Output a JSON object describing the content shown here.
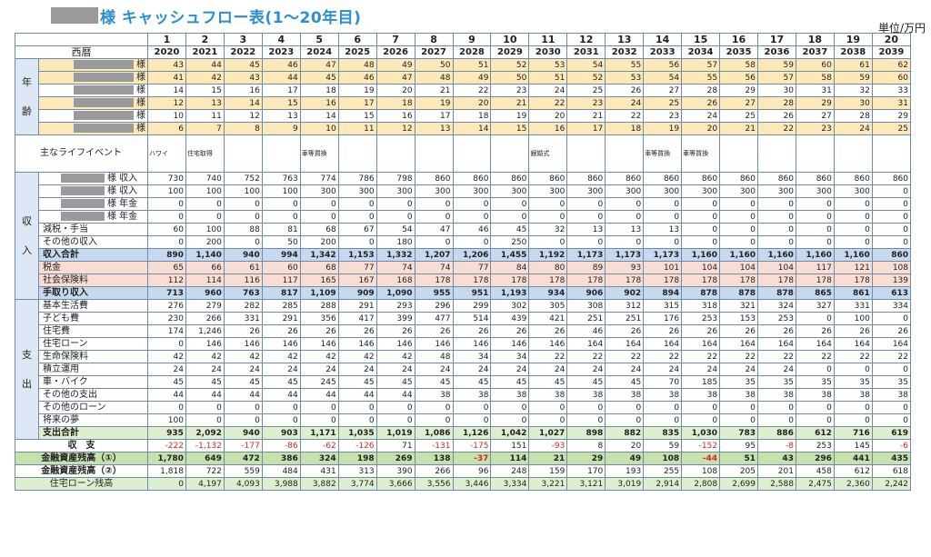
{
  "title": "様 キャッシュフロー表(1～20年目)",
  "unit": "単位/万円",
  "year_numbers": [
    "1",
    "2",
    "3",
    "4",
    "5",
    "6",
    "7",
    "8",
    "9",
    "10",
    "11",
    "12",
    "13",
    "14",
    "15",
    "16",
    "17",
    "18",
    "19",
    "20"
  ],
  "calendar_label": "西暦",
  "calendar_years": [
    "2020",
    "2021",
    "2022",
    "2023",
    "2024",
    "2025",
    "2026",
    "2027",
    "2028",
    "2029",
    "2030",
    "2031",
    "2032",
    "2033",
    "2034",
    "2035",
    "2036",
    "2037",
    "2038",
    "2039"
  ],
  "age_group_label": [
    "年",
    "齢"
  ],
  "age_suffix": "様",
  "ages": [
    [
      43,
      44,
      45,
      46,
      47,
      48,
      49,
      50,
      51,
      52,
      53,
      54,
      55,
      56,
      57,
      58,
      59,
      60,
      61,
      62
    ],
    [
      41,
      42,
      43,
      44,
      45,
      46,
      47,
      48,
      49,
      50,
      51,
      52,
      53,
      54,
      55,
      56,
      57,
      58,
      59,
      60
    ],
    [
      14,
      15,
      16,
      17,
      18,
      19,
      20,
      21,
      22,
      23,
      24,
      25,
      26,
      27,
      28,
      29,
      30,
      31,
      32,
      33
    ],
    [
      12,
      13,
      14,
      15,
      16,
      17,
      18,
      19,
      20,
      21,
      22,
      23,
      24,
      25,
      26,
      27,
      28,
      29,
      30,
      31
    ],
    [
      10,
      11,
      12,
      13,
      14,
      15,
      16,
      17,
      18,
      19,
      20,
      21,
      22,
      23,
      24,
      25,
      26,
      27,
      28,
      29
    ],
    [
      6,
      7,
      8,
      9,
      10,
      11,
      12,
      13,
      14,
      15,
      16,
      17,
      18,
      19,
      20,
      21,
      22,
      23,
      24,
      25
    ]
  ],
  "age_highlight": [
    true,
    true,
    false,
    true,
    false,
    true
  ],
  "life_event_label": "主なライフイベント",
  "life_events": [
    "ハワイ",
    "住宅取得",
    "",
    "",
    "車等買換",
    "",
    "",
    "",
    "",
    "",
    "銀婚式",
    "",
    "",
    "車等買換",
    "車等買換",
    "",
    "",
    "",
    "",
    ""
  ],
  "income_group_label": [
    "収",
    "入"
  ],
  "income_rows": [
    {
      "label": "様 収入",
      "masked": true,
      "values": [
        "730",
        "740",
        "752",
        "763",
        "774",
        "786",
        "798",
        "860",
        "860",
        "860",
        "860",
        "860",
        "860",
        "860",
        "860",
        "860",
        "860",
        "860",
        "860",
        "860"
      ]
    },
    {
      "label": "様 収入",
      "masked": true,
      "values": [
        "100",
        "100",
        "100",
        "100",
        "300",
        "300",
        "300",
        "300",
        "300",
        "300",
        "300",
        "300",
        "300",
        "300",
        "300",
        "300",
        "300",
        "300",
        "300",
        "0"
      ]
    },
    {
      "label": "様 年金",
      "masked": true,
      "values": [
        "0",
        "0",
        "0",
        "0",
        "0",
        "0",
        "0",
        "0",
        "0",
        "0",
        "0",
        "0",
        "0",
        "0",
        "0",
        "0",
        "0",
        "0",
        "0",
        "0"
      ]
    },
    {
      "label": "様 年金",
      "masked": true,
      "values": [
        "0",
        "0",
        "0",
        "0",
        "0",
        "0",
        "0",
        "0",
        "0",
        "0",
        "0",
        "0",
        "0",
        "0",
        "0",
        "0",
        "0",
        "0",
        "0",
        "0"
      ]
    },
    {
      "label": "減税・手当",
      "masked": false,
      "values": [
        "60",
        "100",
        "88",
        "81",
        "68",
        "67",
        "54",
        "47",
        "46",
        "45",
        "32",
        "13",
        "13",
        "13",
        "0",
        "0",
        "0",
        "0",
        "0",
        "0"
      ]
    },
    {
      "label": "その他の収入",
      "masked": false,
      "values": [
        "0",
        "200",
        "0",
        "50",
        "200",
        "0",
        "180",
        "0",
        "0",
        "250",
        "0",
        "0",
        "0",
        "0",
        "0",
        "0",
        "0",
        "0",
        "0",
        "0"
      ]
    }
  ],
  "income_total": {
    "label": "収入合計",
    "values": [
      "890",
      "1,140",
      "940",
      "994",
      "1,342",
      "1,153",
      "1,332",
      "1,207",
      "1,206",
      "1,455",
      "1,192",
      "1,173",
      "1,173",
      "1,173",
      "1,160",
      "1,160",
      "1,160",
      "1,160",
      "1,160",
      "860"
    ]
  },
  "deduction_rows": [
    {
      "label": "税金",
      "values": [
        "65",
        "66",
        "61",
        "60",
        "68",
        "77",
        "74",
        "74",
        "77",
        "84",
        "80",
        "89",
        "93",
        "101",
        "104",
        "104",
        "104",
        "117",
        "121",
        "108"
      ]
    },
    {
      "label": "社会保険料",
      "values": [
        "112",
        "114",
        "116",
        "117",
        "165",
        "167",
        "168",
        "178",
        "178",
        "178",
        "178",
        "178",
        "178",
        "178",
        "178",
        "178",
        "178",
        "178",
        "178",
        "139"
      ]
    }
  ],
  "take_home": {
    "label": "手取り収入",
    "values": [
      "713",
      "960",
      "763",
      "817",
      "1,109",
      "909",
      "1,090",
      "955",
      "951",
      "1,193",
      "934",
      "906",
      "902",
      "894",
      "878",
      "878",
      "878",
      "865",
      "861",
      "613"
    ]
  },
  "expense_group_label": [
    "支",
    "出"
  ],
  "expense_rows": [
    {
      "label": "基本生活費",
      "values": [
        "276",
        "279",
        "282",
        "285",
        "288",
        "291",
        "293",
        "296",
        "299",
        "302",
        "305",
        "308",
        "312",
        "315",
        "318",
        "321",
        "324",
        "327",
        "331",
        "334"
      ]
    },
    {
      "label": "子ども費",
      "values": [
        "230",
        "266",
        "331",
        "291",
        "356",
        "417",
        "399",
        "477",
        "514",
        "439",
        "421",
        "251",
        "251",
        "176",
        "253",
        "153",
        "253",
        "0",
        "100",
        "0"
      ]
    },
    {
      "label": "住宅費",
      "values": [
        "174",
        "1,246",
        "26",
        "26",
        "26",
        "26",
        "26",
        "26",
        "26",
        "26",
        "26",
        "46",
        "26",
        "26",
        "26",
        "26",
        "26",
        "26",
        "26",
        "26"
      ]
    },
    {
      "label": "住宅ローン",
      "values": [
        "0",
        "146",
        "146",
        "146",
        "146",
        "146",
        "146",
        "146",
        "146",
        "146",
        "146",
        "164",
        "164",
        "164",
        "164",
        "164",
        "164",
        "164",
        "164",
        "164"
      ]
    },
    {
      "label": "生命保険料",
      "values": [
        "42",
        "42",
        "42",
        "42",
        "42",
        "42",
        "42",
        "48",
        "34",
        "34",
        "22",
        "22",
        "22",
        "22",
        "22",
        "22",
        "22",
        "22",
        "22",
        "22"
      ]
    },
    {
      "label": "積立運用",
      "values": [
        "24",
        "24",
        "24",
        "24",
        "24",
        "24",
        "24",
        "24",
        "24",
        "24",
        "24",
        "24",
        "24",
        "24",
        "24",
        "24",
        "24",
        "0",
        "0",
        "0"
      ]
    },
    {
      "label": "車・バイク",
      "values": [
        "45",
        "45",
        "45",
        "45",
        "245",
        "45",
        "45",
        "45",
        "45",
        "45",
        "45",
        "45",
        "45",
        "70",
        "185",
        "35",
        "35",
        "35",
        "35",
        "35"
      ]
    },
    {
      "label": "その他の支出",
      "values": [
        "44",
        "44",
        "44",
        "44",
        "44",
        "44",
        "44",
        "38",
        "38",
        "38",
        "38",
        "38",
        "38",
        "38",
        "38",
        "38",
        "38",
        "38",
        "38",
        "38"
      ]
    },
    {
      "label": "その他のローン",
      "values": [
        "0",
        "0",
        "0",
        "0",
        "0",
        "0",
        "0",
        "0",
        "0",
        "0",
        "0",
        "0",
        "0",
        "0",
        "0",
        "0",
        "0",
        "0",
        "0",
        "0"
      ]
    },
    {
      "label": "将来の夢",
      "values": [
        "100",
        "0",
        "0",
        "0",
        "0",
        "0",
        "0",
        "0",
        "0",
        "0",
        "0",
        "0",
        "0",
        "0",
        "0",
        "0",
        "0",
        "0",
        "0",
        "0"
      ]
    }
  ],
  "expense_total": {
    "label": "支出合計",
    "values": [
      "935",
      "2,092",
      "940",
      "903",
      "1,171",
      "1,035",
      "1,019",
      "1,086",
      "1,126",
      "1,042",
      "1,027",
      "898",
      "882",
      "835",
      "1,030",
      "783",
      "886",
      "612",
      "716",
      "619"
    ]
  },
  "balance": {
    "label": "収　支",
    "values": [
      "-222",
      "-1,132",
      "-177",
      "-86",
      "-62",
      "-126",
      "71",
      "-131",
      "-175",
      "151",
      "-93",
      "8",
      "20",
      "59",
      "-152",
      "95",
      "-8",
      "253",
      "145",
      "-6"
    ]
  },
  "assets1": {
    "label": "金融資産残高（①）",
    "values": [
      "1,780",
      "649",
      "472",
      "386",
      "324",
      "198",
      "269",
      "138",
      "-37",
      "114",
      "21",
      "29",
      "49",
      "108",
      "-44",
      "51",
      "43",
      "296",
      "441",
      "435"
    ]
  },
  "assets2": {
    "label": "金融資産残高（②）",
    "values": [
      "1,818",
      "722",
      "559",
      "484",
      "431",
      "313",
      "390",
      "266",
      "96",
      "248",
      "159",
      "170",
      "193",
      "255",
      "108",
      "205",
      "201",
      "458",
      "612",
      "618"
    ]
  },
  "loan_balance": {
    "label": "住宅ローン残高",
    "values": [
      "0",
      "4,197",
      "4,093",
      "3,988",
      "3,882",
      "3,774",
      "3,666",
      "3,556",
      "3,446",
      "3,334",
      "3,221",
      "3,121",
      "3,019",
      "2,914",
      "2,808",
      "2,699",
      "2,588",
      "2,475",
      "2,360",
      "2,242"
    ]
  }
}
